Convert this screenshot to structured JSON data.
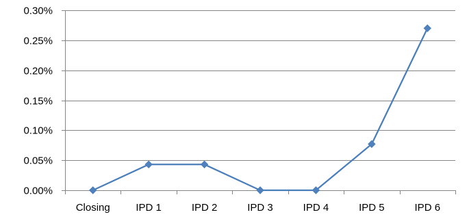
{
  "chart_data": {
    "type": "line",
    "categories": [
      "Closing",
      "IPD 1",
      "IPD 2",
      "IPD 3",
      "IPD 4",
      "IPD 5",
      "IPD 6"
    ],
    "series": [
      {
        "values": [
          0.0,
          0.043,
          0.043,
          0.0,
          0.0,
          0.077,
          0.27
        ]
      }
    ],
    "ylim": [
      0,
      0.3
    ],
    "yticks": [
      0.0,
      0.05,
      0.1,
      0.15,
      0.2,
      0.25,
      0.3
    ],
    "ytick_labels": [
      "0.00%",
      "0.05%",
      "0.10%",
      "0.15%",
      "0.20%",
      "0.25%",
      "0.30%"
    ],
    "y_unit": "percent",
    "grid": true,
    "legend": "none",
    "colors": {
      "line": "#4a7ebb",
      "marker": "#4f81bd",
      "grid": "#868686",
      "axis": "#868686"
    }
  }
}
